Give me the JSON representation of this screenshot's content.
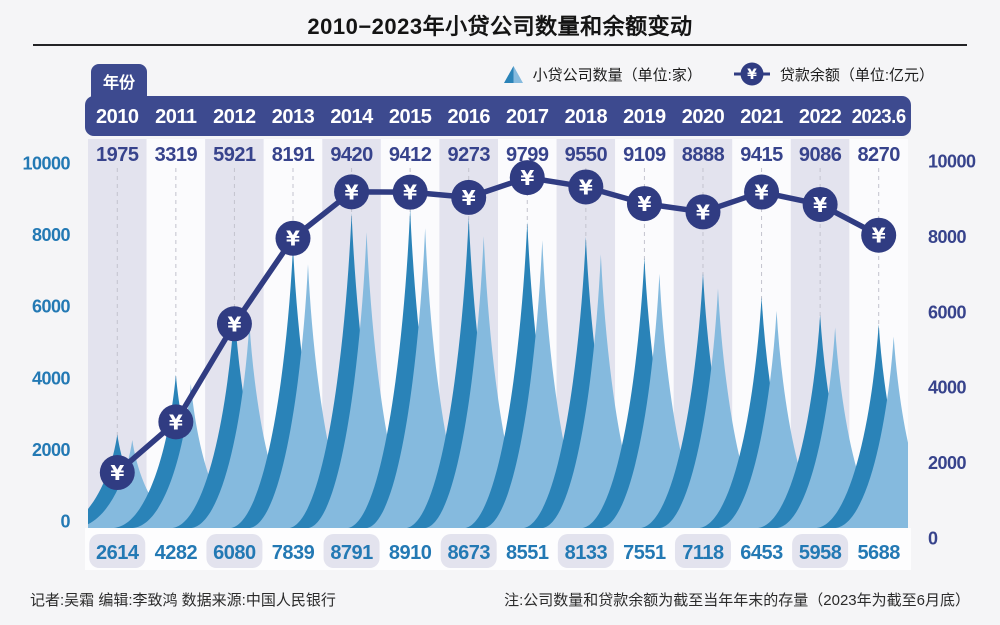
{
  "title": "2010−2023年小贷公司数量和余额变动",
  "year_tab": "年份",
  "legend": {
    "count_label": "小贷公司数量（单位:家）",
    "balance_label": "贷款余额（单位:亿元）"
  },
  "footer": {
    "credits": "记者:吴霜  编辑:李致鸿  数据来源:中国人民银行",
    "note": "注:公司数量和贷款余额为截至当年年末的存量（2023年为截至6月底）"
  },
  "chart_data": {
    "type": "area+line",
    "title": "2010−2023年小贷公司数量和余额变动",
    "categories": [
      "2010",
      "2011",
      "2012",
      "2013",
      "2014",
      "2015",
      "2016",
      "2017",
      "2018",
      "2019",
      "2020",
      "2021",
      "2022",
      "2023.6"
    ],
    "series": [
      {
        "name": "小贷公司数量（单位:家）",
        "type": "spike-area",
        "axis": "left",
        "values": [
          2614,
          4282,
          6080,
          7839,
          8791,
          8910,
          8673,
          8551,
          8133,
          7551,
          7118,
          6453,
          5958,
          5688
        ]
      },
      {
        "name": "贷款余额（单位:亿元）",
        "type": "line",
        "axis": "right",
        "marker": "¥",
        "values": [
          1975,
          3319,
          5921,
          8191,
          9420,
          9412,
          9273,
          9799,
          9550,
          9109,
          8888,
          9415,
          9086,
          8270
        ]
      }
    ],
    "left_axis": {
      "ticks": [
        0,
        2000,
        4000,
        6000,
        8000,
        10000
      ]
    },
    "right_axis": {
      "ticks": [
        0,
        2000,
        4000,
        6000,
        8000,
        10000
      ]
    },
    "ylim": [
      0,
      10000
    ],
    "grid": "vertical-dashed",
    "legend_position": "top-right"
  },
  "colors": {
    "navy_band": "#3d4a8f",
    "navy_line": "#303c82",
    "spike_dark": "#2a83b8",
    "spike_light": "#85bade",
    "col_lavender": "#e3e3ee",
    "col_white": "#fbfbfd",
    "bottom_strip": "#fdfdfe",
    "blue_text": "#2379b4",
    "navy_text": "#37438c",
    "divider": "#232326",
    "page_bg": "#f5f5f7"
  }
}
